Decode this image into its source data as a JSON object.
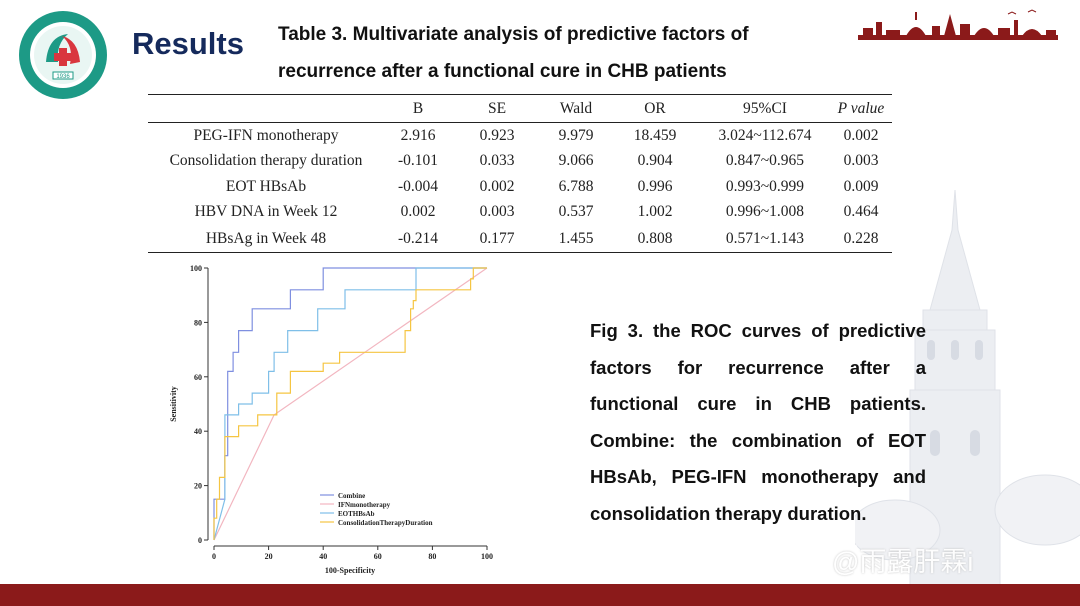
{
  "header": {
    "title": "Results",
    "table_caption": "Table 3. Multivariate analysis of predictive factors of recurrence after a functional cure in CHB patients",
    "logo_year": "1936"
  },
  "table": {
    "columns": [
      "",
      "B",
      "SE",
      "Wald",
      "OR",
      "95%CI",
      "P value"
    ],
    "rows": [
      [
        "PEG-IFN monotherapy",
        "2.916",
        "0.923",
        "9.979",
        "18.459",
        "3.024~112.674",
        "0.002"
      ],
      [
        "Consolidation therapy duration",
        "-0.101",
        "0.033",
        "9.066",
        "0.904",
        "0.847~0.965",
        "0.003"
      ],
      [
        "EOT HBsAb",
        "-0.004",
        "0.002",
        "6.788",
        "0.996",
        "0.993~0.999",
        "0.009"
      ],
      [
        "HBV DNA in Week 12",
        "0.002",
        "0.003",
        "0.537",
        "1.002",
        "0.996~1.008",
        "0.464"
      ],
      [
        "HBsAg in Week 48",
        "-0.214",
        "0.177",
        "1.455",
        "0.808",
        "0.571~1.143",
        "0.228"
      ]
    ]
  },
  "fig_caption": "Fig 3. the ROC curves of predictive factors for recurrence after a functional cure in CHB patients. Combine: the combination of EOT HBsAb, PEG-IFN monotherapy and consolidation therapy duration.",
  "watermark": "@雨露肝霖i",
  "colors": {
    "title_navy": "#152a5c",
    "footer_red": "#8b1a1a",
    "combine": "#7f8fe0",
    "ifn": "#f2b6c0",
    "eothbsab": "#7fbfe8",
    "consolidation": "#f5c542"
  },
  "chart_data": {
    "type": "line",
    "xlabel": "100-Specificity",
    "ylabel": "Sensitivity",
    "xlim": [
      0,
      100
    ],
    "ylim": [
      0,
      100
    ],
    "x_ticks": [
      "0",
      "20",
      "40",
      "60",
      "80",
      "100"
    ],
    "y_ticks": [
      "0",
      "20",
      "40",
      "60",
      "80",
      "100"
    ],
    "grid": false,
    "legend": "bottom-center",
    "series": [
      {
        "name": "Combine",
        "color": "#7f8fe0",
        "x": [
          0,
          0,
          4,
          4,
          5,
          5,
          7,
          7,
          9,
          9,
          14,
          14,
          28,
          28,
          40,
          40,
          74,
          74,
          100
        ],
        "y": [
          0,
          15,
          15,
          31,
          31,
          62,
          62,
          69,
          69,
          77,
          77,
          85,
          85,
          92,
          92,
          100,
          100,
          100,
          100
        ]
      },
      {
        "name": "IFNmonotherapy",
        "color": "#f2b6c0",
        "x": [
          0,
          22,
          100
        ],
        "y": [
          0,
          46,
          100
        ]
      },
      {
        "name": "EOTHBsAb",
        "color": "#7fbfe8",
        "x": [
          0,
          4,
          4,
          9,
          9,
          14,
          14,
          20,
          20,
          22,
          22,
          27,
          27,
          38,
          38,
          48,
          48,
          74,
          74,
          100
        ],
        "y": [
          0,
          15,
          46,
          46,
          50,
          50,
          54,
          54,
          62,
          62,
          69,
          69,
          77,
          77,
          85,
          85,
          92,
          92,
          100,
          100
        ]
      },
      {
        "name": "ConsolidationTherapyDuration",
        "color": "#f5c542",
        "x": [
          0,
          0,
          1,
          1,
          2,
          2,
          4,
          4,
          9,
          9,
          16,
          16,
          23,
          23,
          28,
          28,
          40,
          40,
          46,
          46,
          52,
          52,
          70,
          70,
          72,
          72,
          73,
          73,
          74,
          74,
          94,
          94,
          95,
          95,
          100
        ],
        "y": [
          0,
          8,
          8,
          15,
          15,
          23,
          23,
          38,
          38,
          42,
          42,
          46,
          46,
          54,
          54,
          62,
          62,
          65,
          65,
          69,
          69,
          69,
          69,
          77,
          77,
          85,
          85,
          88,
          88,
          92,
          92,
          96,
          96,
          100,
          100
        ]
      }
    ]
  }
}
